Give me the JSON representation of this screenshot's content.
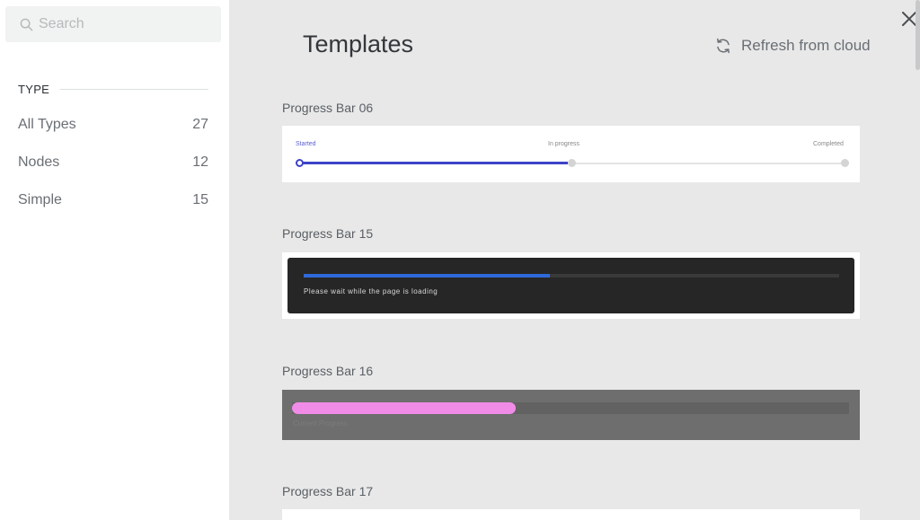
{
  "sidebar": {
    "search": {
      "placeholder": "Search",
      "value": ""
    },
    "section_title": "TYPE",
    "types": [
      {
        "label": "All Types",
        "count": "27"
      },
      {
        "label": "Nodes",
        "count": "12"
      },
      {
        "label": "Simple",
        "count": "15"
      }
    ]
  },
  "main": {
    "title": "Templates",
    "refresh_label": "Refresh from cloud",
    "templates": [
      {
        "name": "Progress Bar 06",
        "preview": {
          "step_labels": [
            "Started",
            "In progress",
            "Completed"
          ],
          "progress": 0.5,
          "accent": "#3d43c8"
        }
      },
      {
        "name": "Progress Bar 15",
        "preview": {
          "message": "Please wait while the page is loading",
          "progress": 0.46,
          "accent": "#2f69d9"
        }
      },
      {
        "name": "Progress Bar 16",
        "preview": {
          "message": "Current Progress",
          "progress": 0.4,
          "accent": "#f08ce8"
        }
      },
      {
        "name": "Progress Bar 17"
      }
    ]
  },
  "icons": {
    "search": "search-icon",
    "refresh": "refresh-icon",
    "close": "close-icon"
  }
}
